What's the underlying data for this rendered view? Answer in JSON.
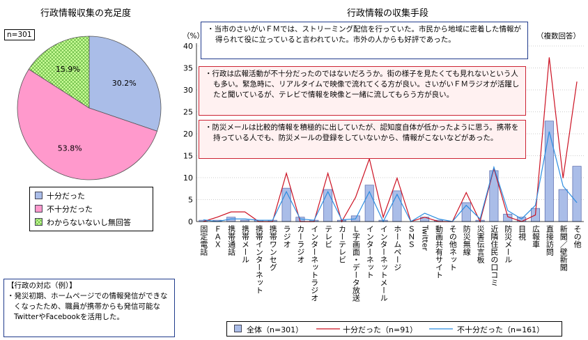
{
  "chart_data": [
    {
      "type": "pie",
      "title": "行政情報収集の充足度",
      "n_label": "n=301",
      "slices": [
        {
          "label": "十分だった",
          "value": 30.2,
          "display": "30.2%",
          "color": "#aabde8"
        },
        {
          "label": "不十分だった",
          "value": 53.8,
          "display": "53.8%",
          "color": "#ff99cc"
        },
        {
          "label": "わからないないし無回答",
          "value": 15.9,
          "display": "15.9%",
          "color": "#ccff99"
        }
      ]
    },
    {
      "type": "bar",
      "title": "行政情報の収集手段",
      "ylabel": "（%）",
      "note": "（複数回答）",
      "ylim": [
        0,
        40
      ],
      "yticks": [
        "0",
        "5",
        "10",
        "15",
        "20",
        "25",
        "30",
        "35",
        "40"
      ],
      "categories": [
        "固定電話",
        "ＦＡＸ",
        "携帯通話",
        "携帯メール",
        "携帯インターネット",
        "携帯ワンセグ",
        "ラジオ",
        "カーラジオ",
        "インターネットラジオ",
        "テレビ",
        "カーテレビ",
        "Ｌ字画面・データ放送",
        "インターネット",
        "インターネットメール",
        "ホームページ",
        "ＳＮＳ",
        "Twitter",
        "動画共有サイト",
        "その他ネット",
        "防災無線",
        "災害伝言板",
        "近隣住民の口コミ",
        "防災メール",
        "目視",
        "広報車",
        "直接訪問",
        "新聞／壁新聞",
        "その他"
      ],
      "series": [
        {
          "name": "全体（n=301）",
          "kind": "bar",
          "color": "#aabde8",
          "values": [
            0.3,
            0.3,
            1.0,
            0.3,
            0.3,
            0.3,
            7.6,
            1.0,
            0.3,
            7.3,
            0.3,
            1.3,
            8.3,
            0.3,
            7.0,
            0.0,
            1.0,
            0.3,
            0.0,
            4.3,
            0.3,
            11.6,
            1.7,
            1.0,
            3.0,
            22.9,
            7.3,
            12.6
          ]
        },
        {
          "name": "十分だった（n=91）",
          "kind": "line",
          "color": "#cc1122",
          "values": [
            0.0,
            1.0,
            2.2,
            2.2,
            0.0,
            0.0,
            11.0,
            0.0,
            0.0,
            11.0,
            0.0,
            5.5,
            14.3,
            1.0,
            9.9,
            0.0,
            1.0,
            0.0,
            0.0,
            6.6,
            0.0,
            12.1,
            1.1,
            0.0,
            1.5,
            37.4,
            9.9,
            31.9
          ]
        },
        {
          "name": "不十分だった（n=161）",
          "kind": "line",
          "color": "#2b8ce0",
          "values": [
            0.4,
            0.0,
            0.6,
            0.6,
            0.3,
            0.3,
            6.8,
            0.6,
            0.3,
            6.8,
            0.4,
            0.6,
            6.8,
            0.0,
            6.2,
            0.0,
            1.9,
            0.6,
            0.0,
            3.7,
            0.6,
            12.4,
            2.5,
            0.6,
            3.7,
            20.5,
            8.1,
            4.3
          ]
        }
      ]
    }
  ],
  "notes": [
    "・当市のさいがいＦＭでは、ストリーミング配信を行っていた。市民から地域に密着した情報が得られて役に立っていると言われていた。市外の人からも好評であった。",
    "・行政は広報活動が不十分だったのではないだろうか。街の様子を見たくても見れないという人も多い。緊急時に、リアルタイムで映像で流れてくる方が良い。さいがいＦＭラジオが活躍したと聞いているが、テレビで情報を映像と一緒に流してもらう方が良い。",
    "・防災メールは比較的情報を積極的に出していたが、認知度自体が低かったように思う。携帯を持っている人でも、防災メールの登録をしていないから、情報がこないなどがあった。"
  ],
  "gov_box": {
    "title": "【行政の対応（例）】",
    "text": "・発災初期、ホームページでの情報発信ができなくなったため、職員が携帯からも発信可能なTwitterやFacebookを活用した。"
  }
}
